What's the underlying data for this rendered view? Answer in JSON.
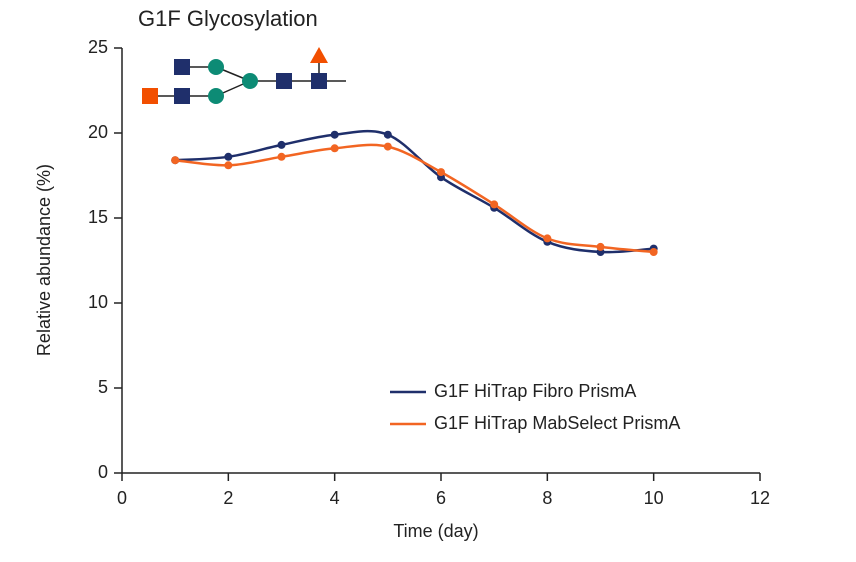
{
  "chart_data": {
    "type": "line",
    "title": "G1F Glycosylation",
    "x_label": "Time (day)",
    "y_label": "Relative abundance (%)",
    "x": [
      1,
      2,
      3,
      4,
      5,
      6,
      7,
      8,
      9,
      10
    ],
    "series": [
      {
        "name": "G1F HiTrap Fibro PrismA",
        "color": "#1f2f6b",
        "values": [
          18.4,
          18.6,
          19.3,
          19.9,
          19.9,
          17.4,
          15.6,
          13.6,
          13.0,
          13.2
        ]
      },
      {
        "name": "G1F HiTrap MabSelect PrismA",
        "color": "#f26522",
        "values": [
          18.4,
          18.1,
          18.6,
          19.1,
          19.2,
          17.7,
          15.8,
          13.8,
          13.3,
          13.0
        ]
      }
    ],
    "xlim": [
      0,
      12
    ],
    "xticks": [
      0,
      2,
      4,
      6,
      8,
      10,
      12
    ],
    "ylim": [
      0,
      25
    ],
    "yticks": [
      0,
      5,
      10,
      15,
      20,
      25
    ],
    "grid": false,
    "legend": "lower-right",
    "smooth": true
  }
}
